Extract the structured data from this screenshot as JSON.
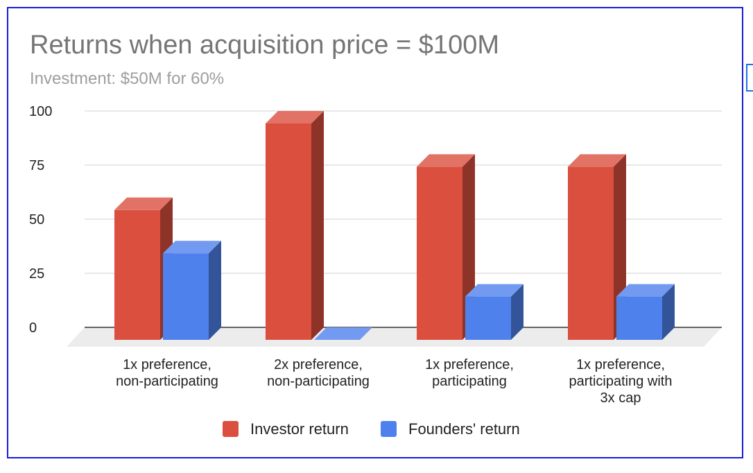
{
  "chart_data": {
    "type": "bar",
    "title": "Returns when acquisition price = $100M",
    "subtitle": "Investment: $50M for 60%",
    "xlabel": "",
    "ylabel": "",
    "ylim": [
      0,
      100
    ],
    "yticks": [
      "0",
      "25",
      "50",
      "75",
      "100"
    ],
    "grid": true,
    "legend": "bottom",
    "three_d": true,
    "categories": [
      [
        "1x preference,",
        "non-participating"
      ],
      [
        "2x preference,",
        "non-participating"
      ],
      [
        "1x preference,",
        "participating"
      ],
      [
        "1x preference,",
        "participating with",
        "3x cap"
      ]
    ],
    "series": [
      {
        "name": "Investor return",
        "color": "#db4f3e",
        "values": [
          60,
          100,
          80,
          80
        ]
      },
      {
        "name": "Founders' return",
        "color": "#4f81ec",
        "values": [
          40,
          0,
          20,
          20
        ]
      }
    ]
  }
}
